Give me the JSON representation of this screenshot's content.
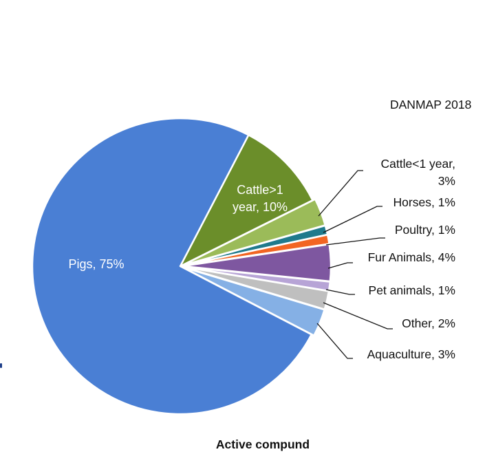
{
  "source_label": "DANMAP 2018",
  "caption": "Active compund",
  "chart_data": {
    "type": "pie",
    "title": "",
    "start_angle_deg": 0,
    "direction": "clockwise",
    "slices": [
      {
        "name": "Cattle>1 year",
        "value": 10,
        "label_lines": [
          "Cattle>1",
          "year, 10%"
        ],
        "label_pos": "inside",
        "color": "#6b8e2a"
      },
      {
        "name": "Cattle<1 year",
        "value": 3,
        "label_lines": [
          "Cattle<1 year,",
          "3%"
        ],
        "label_pos": "outside",
        "color": "#9bbb59"
      },
      {
        "name": "Horses",
        "value": 1,
        "label_lines": [
          "Horses, 1%"
        ],
        "label_pos": "outside",
        "color": "#1f7a8c"
      },
      {
        "name": "Poultry",
        "value": 1,
        "label_lines": [
          "Poultry, 1%"
        ],
        "label_pos": "outside",
        "color": "#f26522"
      },
      {
        "name": "Fur Animals",
        "value": 4,
        "label_lines": [
          "Fur Animals, 4%"
        ],
        "label_pos": "outside",
        "color": "#7e57a0"
      },
      {
        "name": "Pet animals",
        "value": 1,
        "label_lines": [
          "Pet animals, 1%"
        ],
        "label_pos": "outside",
        "color": "#b7a4d6"
      },
      {
        "name": "Other",
        "value": 2,
        "label_lines": [
          "Other, 2%"
        ],
        "label_pos": "outside",
        "color": "#bfbfbf"
      },
      {
        "name": "Aquaculture",
        "value": 3,
        "label_lines": [
          "Aquaculture, 3%"
        ],
        "label_pos": "outside",
        "color": "#85b0e5"
      },
      {
        "name": "Pigs",
        "value": 75,
        "label_lines": [
          "Pigs, 75%"
        ],
        "label_pos": "inside",
        "color": "#4a7fd4"
      }
    ]
  }
}
